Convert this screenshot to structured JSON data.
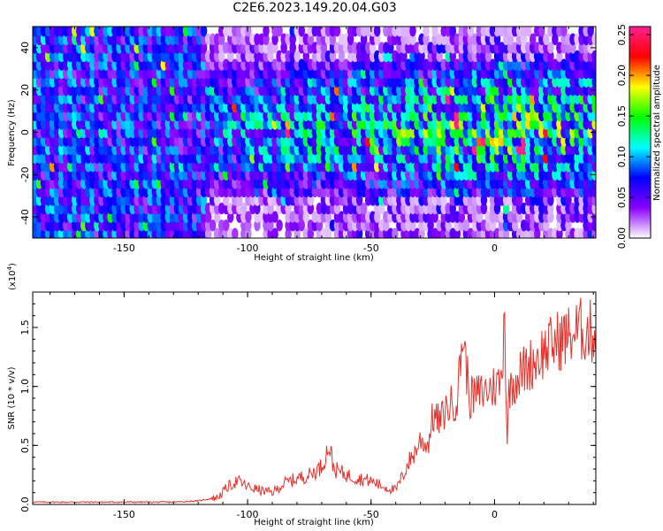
{
  "title": "C2E6.2023.149.20.04.G03",
  "colors": {
    "snr_line": "#e8302a",
    "axis": "#000000",
    "background": "#ffffff"
  },
  "chart_data": [
    {
      "type": "heatmap",
      "xlabel": "Height of straight line (km)",
      "ylabel": "Frequency (Hz)",
      "xlim": [
        -187,
        41
      ],
      "ylim": [
        -50,
        50
      ],
      "x_ticks": [
        -150,
        -100,
        -50,
        0
      ],
      "x_tick_labels": [
        "-150",
        "-100",
        "-50",
        "0"
      ],
      "y_ticks": [
        40,
        20,
        0,
        -20,
        -40
      ],
      "y_tick_labels": [
        "40",
        "20",
        "0",
        "-20",
        "-40"
      ],
      "colorbar": {
        "label": "Normalized spectral amplitude",
        "range": [
          0,
          0.26
        ],
        "ticks": [
          0.0,
          0.05,
          0.1,
          0.15,
          0.2,
          0.25
        ],
        "tick_labels": [
          "0.00",
          "0.05",
          "0.10",
          "0.15",
          "0.20",
          "0.25"
        ],
        "colors": [
          "#ffffff",
          "#8a00ff",
          "#0000ff",
          "#00ffff",
          "#00ff00",
          "#ffff00",
          "#ff0000",
          "#ff2090"
        ]
      },
      "description_level_by_height": [
        {
          "x": -187,
          "level": 0.08
        },
        {
          "x": -120,
          "level": 0.07
        },
        {
          "x": -110,
          "level": 0.09
        },
        {
          "x": -50,
          "level": 0.12
        },
        {
          "x": 0,
          "level": 0.14
        },
        {
          "x": 41,
          "level": 0.13
        }
      ]
    },
    {
      "type": "line",
      "xlabel": "Height of straight line (km)",
      "ylabel": "SNR (10 * v/v)",
      "y_multiplier": "(x10",
      "y_multiplier_exp": "4",
      "y_multiplier_close": ")",
      "xlim": [
        -187,
        41
      ],
      "ylim": [
        0,
        1.8
      ],
      "x_ticks": [
        -150,
        -100,
        -50,
        0
      ],
      "x_tick_labels": [
        "-150",
        "-100",
        "-50",
        "0"
      ],
      "y_ticks": [
        0.0,
        0.5,
        1.0,
        1.5
      ],
      "y_tick_labels": [
        "0.0",
        "0.5",
        "1.0",
        "1.5"
      ],
      "series": [
        {
          "x": [
            -187,
            -170,
            -150,
            -130,
            -120,
            -112,
            -108,
            -104,
            -100,
            -95,
            -90,
            -85,
            -80,
            -75,
            -70,
            -67,
            -65,
            -60,
            -55,
            -50,
            -45,
            -40,
            -37,
            -35,
            -32,
            -30,
            -27,
            -25,
            -22,
            -20,
            -15,
            -13,
            -10,
            -5,
            0,
            3,
            4,
            5,
            6,
            10,
            15,
            20,
            25,
            30,
            35,
            41
          ],
          "y": [
            0.02,
            0.02,
            0.02,
            0.02,
            0.03,
            0.06,
            0.15,
            0.2,
            0.15,
            0.12,
            0.1,
            0.18,
            0.22,
            0.25,
            0.32,
            0.5,
            0.3,
            0.25,
            0.22,
            0.2,
            0.15,
            0.12,
            0.25,
            0.35,
            0.45,
            0.55,
            0.5,
            0.75,
            0.7,
            0.8,
            0.9,
            1.45,
            0.9,
            0.95,
            1.0,
            1.05,
            1.8,
            0.5,
            1.0,
            1.1,
            1.2,
            1.3,
            1.38,
            1.43,
            1.48,
            1.45
          ]
        }
      ]
    }
  ]
}
